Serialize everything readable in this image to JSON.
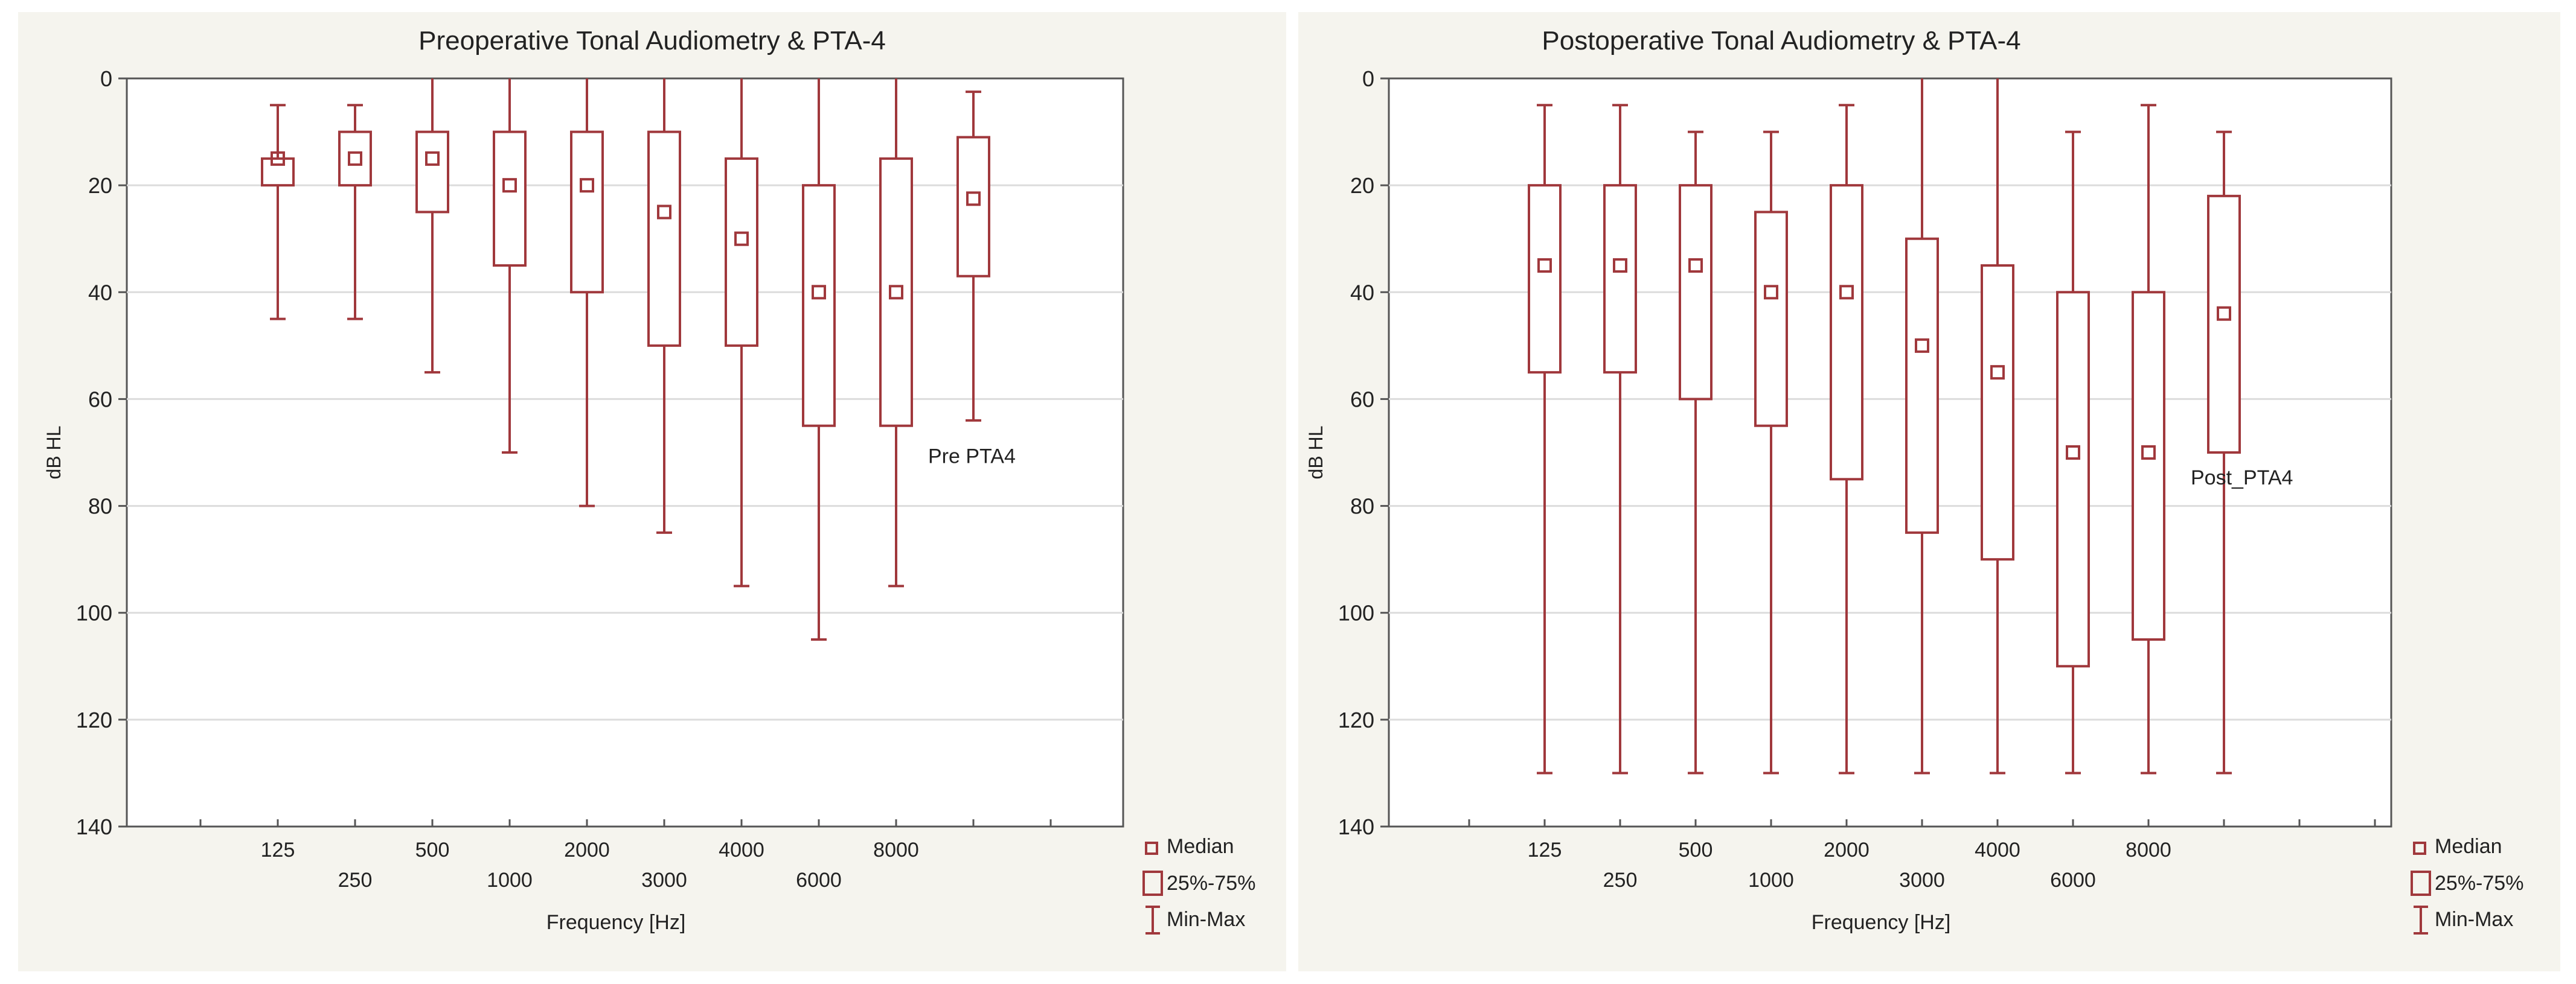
{
  "colors": {
    "panel_bg": "#f5f4ee",
    "plot_bg": "#ffffff",
    "box": "#a0383c",
    "grid": "#dcdcdc",
    "axis": "#555555",
    "text": "#222222"
  },
  "legend": {
    "median": "Median",
    "iqr": "25%-75%",
    "range": "Min-Max"
  },
  "chart_data": [
    {
      "type": "box",
      "title": "Preoperative Tonal Audiometry & PTA-4",
      "xlabel": "Frequency [Hz]",
      "ylabel": "dB HL",
      "ylim": [
        0,
        140
      ],
      "y_inverted": true,
      "y_ticks": [
        "0",
        "20",
        "40",
        "60",
        "80",
        "100",
        "120",
        "140"
      ],
      "categories": [
        "125",
        "250",
        "500",
        "1000",
        "2000",
        "3000",
        "4000",
        "6000",
        "8000",
        "Pre PTA4"
      ],
      "series": [
        {
          "category": "125",
          "min": 5,
          "q1": 15,
          "median": 15,
          "q3": 20,
          "max": 45
        },
        {
          "category": "250",
          "min": 5,
          "q1": 10,
          "median": 15,
          "q3": 20,
          "max": 45
        },
        {
          "category": "500",
          "min": 0,
          "q1": 10,
          "median": 15,
          "q3": 25,
          "max": 55
        },
        {
          "category": "1000",
          "min": 0,
          "q1": 10,
          "median": 20,
          "q3": 35,
          "max": 70
        },
        {
          "category": "2000",
          "min": 0,
          "q1": 10,
          "median": 20,
          "q3": 40,
          "max": 80
        },
        {
          "category": "3000",
          "min": 0,
          "q1": 10,
          "median": 25,
          "q3": 50,
          "max": 85
        },
        {
          "category": "4000",
          "min": 0,
          "q1": 15,
          "median": 30,
          "q3": 50,
          "max": 95
        },
        {
          "category": "6000",
          "min": 0,
          "q1": 20,
          "median": 40,
          "q3": 65,
          "max": 105
        },
        {
          "category": "8000",
          "min": 0,
          "q1": 15,
          "median": 40,
          "q3": 65,
          "max": 95
        },
        {
          "category": "Pre PTA4",
          "min": 2.5,
          "q1": 11,
          "median": 22.5,
          "q3": 37,
          "max": 64
        }
      ]
    },
    {
      "type": "box",
      "title": "Postoperative Tonal Audiometry & PTA-4",
      "xlabel": "Frequency [Hz]",
      "ylabel": "dB HL",
      "ylim": [
        0,
        140
      ],
      "y_inverted": true,
      "y_ticks": [
        "0",
        "20",
        "40",
        "60",
        "80",
        "100",
        "120",
        "140"
      ],
      "categories": [
        "125",
        "250",
        "500",
        "1000",
        "2000",
        "3000",
        "4000",
        "6000",
        "8000",
        "Post_PTA4"
      ],
      "series": [
        {
          "category": "125",
          "min": 5,
          "q1": 20,
          "median": 35,
          "q3": 55,
          "max": 130
        },
        {
          "category": "250",
          "min": 5,
          "q1": 20,
          "median": 35,
          "q3": 55,
          "max": 130
        },
        {
          "category": "500",
          "min": 10,
          "q1": 20,
          "median": 35,
          "q3": 60,
          "max": 130
        },
        {
          "category": "1000",
          "min": 10,
          "q1": 25,
          "median": 40,
          "q3": 65,
          "max": 130
        },
        {
          "category": "2000",
          "min": 5,
          "q1": 20,
          "median": 40,
          "q3": 75,
          "max": 130
        },
        {
          "category": "3000",
          "min": 0,
          "q1": 30,
          "median": 50,
          "q3": 85,
          "max": 130
        },
        {
          "category": "4000",
          "min": 0,
          "q1": 35,
          "median": 55,
          "q3": 90,
          "max": 130
        },
        {
          "category": "6000",
          "min": 10,
          "q1": 40,
          "median": 70,
          "q3": 110,
          "max": 130
        },
        {
          "category": "8000",
          "min": 5,
          "q1": 40,
          "median": 70,
          "q3": 105,
          "max": 130
        },
        {
          "category": "Post_PTA4",
          "min": 10,
          "q1": 22,
          "median": 44,
          "q3": 70,
          "max": 130
        }
      ]
    }
  ]
}
